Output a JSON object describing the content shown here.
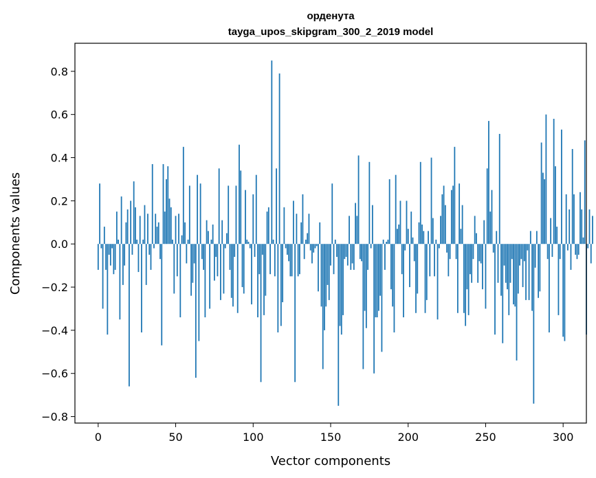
{
  "chart_data": {
    "type": "bar",
    "title": "орденута",
    "subtitle": "tayga_upos_skipgram_300_2_2019 model",
    "xlabel": "Vector components",
    "ylabel": "Components values",
    "xlim": [
      -15,
      315
    ],
    "ylim": [
      -0.83,
      0.93
    ],
    "xticks": [
      0,
      50,
      100,
      150,
      200,
      250,
      300
    ],
    "xtick_labels": [
      "0",
      "50",
      "100",
      "150",
      "200",
      "250",
      "300"
    ],
    "yticks": [
      -0.8,
      -0.6,
      -0.4,
      -0.2,
      0.0,
      0.2,
      0.4,
      0.6,
      0.8
    ],
    "ytick_labels": [
      "−0.8",
      "−0.6",
      "−0.4",
      "−0.2",
      "0.0",
      "0.2",
      "0.4",
      "0.6",
      "0.8"
    ],
    "grid": false,
    "bar_color": "#1f77b4",
    "values": [
      -0.12,
      0.28,
      -0.02,
      -0.3,
      0.08,
      -0.12,
      -0.42,
      -0.05,
      -0.1,
      -0.02,
      -0.14,
      -0.12,
      0.15,
      0.02,
      -0.35,
      0.22,
      -0.19,
      -0.1,
      0.1,
      0.16,
      -0.66,
      0.2,
      -0.05,
      0.29,
      0.17,
      0.02,
      -0.13,
      0.13,
      -0.41,
      0.02,
      0.18,
      -0.19,
      0.14,
      -0.05,
      -0.12,
      0.37,
      -0.02,
      0.14,
      0.08,
      0.1,
      -0.07,
      -0.47,
      0.37,
      0.15,
      0.3,
      0.36,
      0.21,
      0.17,
      0.02,
      -0.23,
      0.13,
      -0.15,
      0.14,
      -0.34,
      0.04,
      0.45,
      0.1,
      -0.09,
      0.02,
      0.27,
      -0.24,
      -0.18,
      -0.09,
      -0.62,
      0.32,
      -0.45,
      0.28,
      -0.07,
      -0.12,
      -0.34,
      0.11,
      0.06,
      -0.3,
      0.02,
      0.09,
      -0.17,
      -0.06,
      -0.15,
      0.35,
      -0.26,
      0.11,
      -0.23,
      -0.02,
      0.05,
      0.27,
      -0.12,
      -0.25,
      -0.29,
      -0.06,
      0.27,
      -0.32,
      0.46,
      0.34,
      -0.2,
      -0.23,
      0.25,
      0.02,
      0.01,
      -0.02,
      -0.28,
      0.23,
      -0.06,
      0.32,
      -0.34,
      -0.14,
      -0.64,
      -0.05,
      -0.33,
      -0.24,
      0.15,
      0.17,
      -0.14,
      0.85,
      0.02,
      -0.15,
      0.35,
      -0.41,
      0.79,
      -0.38,
      -0.27,
      0.17,
      -0.02,
      -0.05,
      -0.08,
      -0.15,
      -0.15,
      0.2,
      -0.64,
      0.14,
      -0.15,
      -0.14,
      0.1,
      0.23,
      -0.07,
      0.02,
      0.05,
      0.14,
      -0.03,
      -0.09,
      -0.04,
      -0.02,
      -0.01,
      -0.22,
      0.1,
      -0.29,
      -0.58,
      -0.4,
      -0.29,
      -0.19,
      -0.26,
      -0.1,
      0.28,
      -0.14,
      0.02,
      -0.06,
      -0.75,
      -0.38,
      -0.42,
      -0.33,
      -0.07,
      -0.06,
      -0.1,
      0.13,
      -0.12,
      -0.09,
      -0.12,
      0.19,
      0.13,
      0.41,
      -0.07,
      -0.08,
      -0.58,
      -0.31,
      -0.39,
      -0.12,
      0.38,
      -0.02,
      0.18,
      -0.6,
      -0.34,
      -0.34,
      -0.31,
      -0.24,
      -0.5,
      0.02,
      -0.12,
      0.01,
      0.02,
      0.3,
      -0.21,
      -0.29,
      -0.41,
      0.32,
      0.07,
      0.09,
      0.2,
      -0.14,
      -0.34,
      -0.03,
      0.2,
      0.07,
      -0.2,
      0.15,
      0.03,
      -0.08,
      -0.32,
      -0.23,
      0.1,
      0.38,
      0.09,
      0.06,
      -0.32,
      -0.26,
      0.06,
      -0.15,
      0.4,
      0.12,
      -0.15,
      0.02,
      -0.35,
      -0.02,
      0.13,
      0.23,
      0.27,
      0.18,
      -0.04,
      -0.15,
      -0.07,
      0.25,
      0.27,
      0.45,
      -0.07,
      -0.32,
      0.28,
      0.07,
      0.18,
      -0.32,
      -0.38,
      -0.21,
      -0.33,
      -0.14,
      -0.18,
      -0.07,
      0.13,
      0.05,
      -0.18,
      -0.08,
      -0.09,
      -0.21,
      0.11,
      -0.3,
      0.35,
      0.57,
      0.15,
      0.25,
      -0.04,
      -0.42,
      0.06,
      -0.18,
      0.51,
      -0.24,
      -0.46,
      -0.1,
      -0.18,
      -0.21,
      -0.33,
      -0.18,
      -0.07,
      -0.28,
      -0.29,
      -0.54,
      -0.23,
      -0.1,
      -0.07,
      -0.2,
      -0.08,
      -0.26,
      -0.03,
      -0.26,
      0.06,
      -0.31,
      -0.74,
      -0.11,
      0.06,
      -0.25,
      -0.22,
      0.47,
      0.33,
      0.3,
      0.6,
      -0.07,
      -0.41,
      0.12,
      -0.06,
      0.58,
      0.36,
      0.08,
      -0.33,
      -0.07,
      0.53,
      -0.43,
      -0.45,
      0.23,
      -0.03,
      0.16,
      -0.12,
      0.44,
      0.23,
      -0.05,
      -0.07,
      -0.05,
      0.24,
      0.16,
      0.03,
      0.48,
      -0.42,
      -0.02,
      0.16,
      -0.09,
      0.13
    ]
  }
}
